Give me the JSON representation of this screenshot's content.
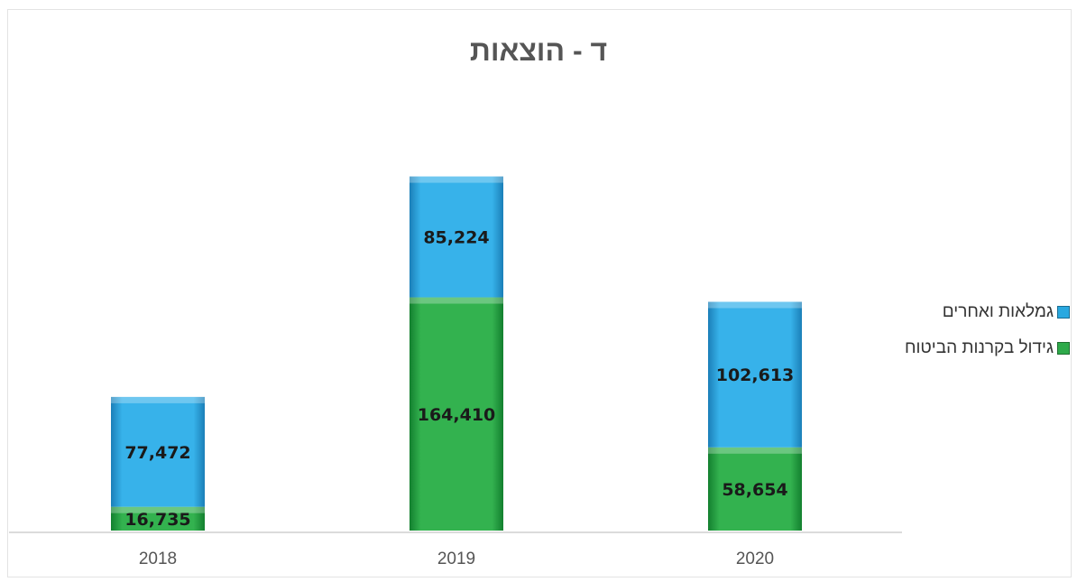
{
  "chart_data": {
    "type": "bar",
    "stacked": true,
    "title": "ד - הוצאות",
    "categories": [
      "2018",
      "2019",
      "2020"
    ],
    "series": [
      {
        "name": "גידול בקרנות הביטוח",
        "color": "#2eaa4a",
        "values": [
          16735,
          164410,
          58654
        ],
        "labels": [
          "16,735",
          "164,410",
          "58,654"
        ]
      },
      {
        "name": "גמלאות ואחרים",
        "color": "#29a8e0",
        "values": [
          77472,
          85224,
          102613
        ],
        "labels": [
          "77,472",
          "85,224",
          "102,613"
        ]
      }
    ],
    "ylim": [
      0,
      260000
    ],
    "grid": false,
    "legend_position": "right"
  }
}
